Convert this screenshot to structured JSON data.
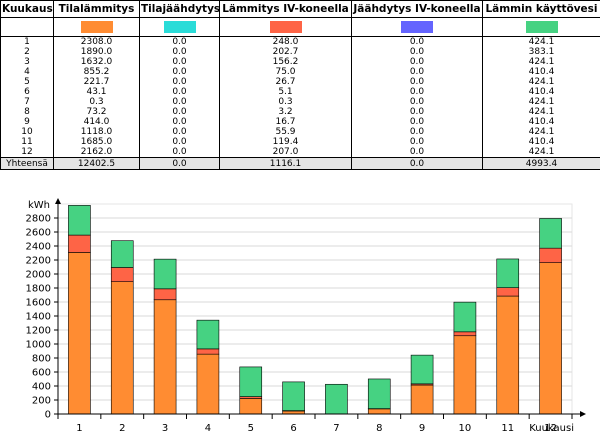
{
  "table": {
    "headers": [
      "Kuukausi",
      "Tilalämmitys",
      "Tilajäähdytys",
      "Lämmitys IV-koneella",
      "Jäähdytys IV-koneella",
      "Lämmin käyttövesi"
    ],
    "swatch_colors": [
      "#ff8c32",
      "#2adcd8",
      "#fe6446",
      "#6464fe",
      "#46d282"
    ],
    "rows": [
      [
        "1",
        "2308.0",
        "0.0",
        "248.0",
        "0.0",
        "424.1"
      ],
      [
        "2",
        "1890.0",
        "0.0",
        "202.7",
        "0.0",
        "383.1"
      ],
      [
        "3",
        "1632.0",
        "0.0",
        "156.2",
        "0.0",
        "424.1"
      ],
      [
        "4",
        "855.2",
        "0.0",
        "75.0",
        "0.0",
        "410.4"
      ],
      [
        "5",
        "221.7",
        "0.0",
        "26.7",
        "0.0",
        "424.1"
      ],
      [
        "6",
        "43.1",
        "0.0",
        "5.1",
        "0.0",
        "410.4"
      ],
      [
        "7",
        "0.3",
        "0.0",
        "0.3",
        "0.0",
        "424.1"
      ],
      [
        "8",
        "73.2",
        "0.0",
        "3.2",
        "0.0",
        "424.1"
      ],
      [
        "9",
        "414.0",
        "0.0",
        "16.7",
        "0.0",
        "410.4"
      ],
      [
        "10",
        "1118.0",
        "0.0",
        "55.9",
        "0.0",
        "424.1"
      ],
      [
        "11",
        "1685.0",
        "0.0",
        "119.4",
        "0.0",
        "410.4"
      ],
      [
        "12",
        "2162.0",
        "0.0",
        "207.0",
        "0.0",
        "424.1"
      ]
    ],
    "total": [
      "Yhteensä",
      "12402.5",
      "0.0",
      "1116.1",
      "0.0",
      "4993.4"
    ]
  },
  "chart_data": {
    "type": "bar",
    "stacked": true,
    "ylabel": "kWh",
    "xlabel": "Kuukausi",
    "ylim": [
      0,
      3000
    ],
    "yticks": [
      0,
      200,
      400,
      600,
      800,
      1000,
      1200,
      1400,
      1600,
      1800,
      2000,
      2200,
      2400,
      2600,
      2800
    ],
    "grid": true,
    "categories": [
      "1",
      "2",
      "3",
      "4",
      "5",
      "6",
      "7",
      "8",
      "9",
      "10",
      "11",
      "12"
    ],
    "series": [
      {
        "name": "Tilalämmitys",
        "color": "#ff8c32",
        "values": [
          2308.0,
          1890.0,
          1632.0,
          855.2,
          221.7,
          43.1,
          0.3,
          73.2,
          414.0,
          1118.0,
          1685.0,
          2162.0
        ]
      },
      {
        "name": "Lämmitys IV-koneella",
        "color": "#fe6446",
        "values": [
          248.0,
          202.7,
          156.2,
          75.0,
          26.7,
          5.1,
          0.3,
          3.2,
          16.7,
          55.9,
          119.4,
          207.0
        ]
      },
      {
        "name": "Lämmin käyttövesi",
        "color": "#46d282",
        "values": [
          424.1,
          383.1,
          424.1,
          410.4,
          424.1,
          410.4,
          424.1,
          424.1,
          410.4,
          424.1,
          410.4,
          424.1
        ]
      }
    ]
  }
}
